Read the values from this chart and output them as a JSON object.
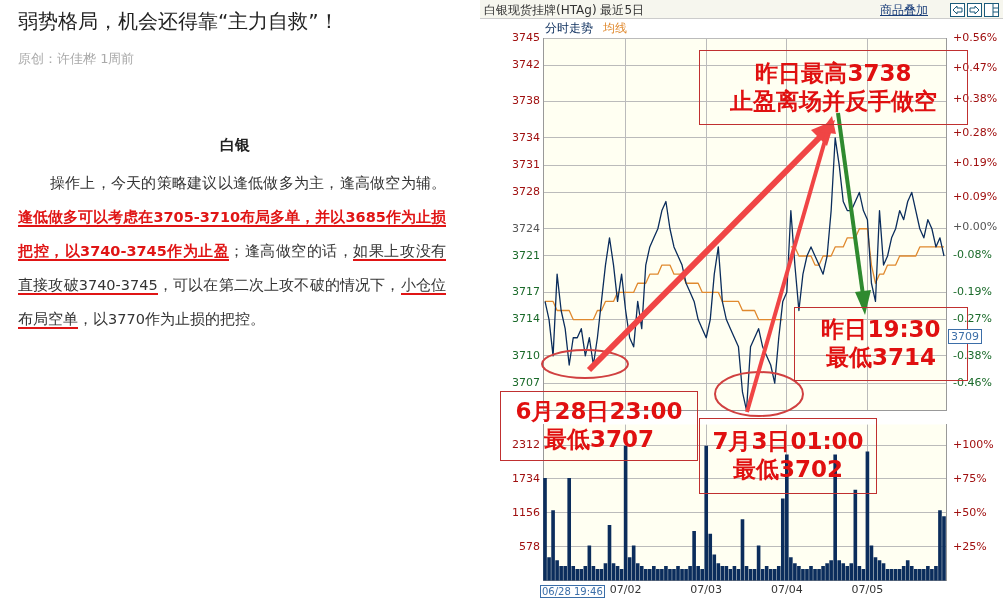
{
  "chart_data": [
    {
      "type": "other",
      "title": "弱势格局，机会还得靠“主力自救”！",
      "subtitle": "原创：许佳桦 1周前",
      "annotations": [
        "白银",
        "操作上，今天的策略建议以逢低做多为主，逢高做空为辅。",
        "逢低做多可以考虑在3705-3710布局多单，并以3685作为止损把控，以3740-3745作为止盈",
        "；逢高做空的话，",
        "如果上攻没有直接攻破3740-3745",
        "，可以在第二次上攻不破的情况下，",
        "小仓位布局空单",
        "，以3770作为止损的把控。"
      ]
    },
    {
      "type": "line",
      "title": "白银现货挂牌(HTAg) 最近5日",
      "legend": "top left",
      "grid": true,
      "tick_labels": "y",
      "categories": [
        null,
        null,
        null,
        null,
        null,
        null,
        null,
        null,
        null,
        null,
        null,
        null,
        null,
        null,
        null,
        null,
        null,
        null,
        null,
        null,
        null,
        null,
        null,
        null,
        null,
        null,
        null,
        null,
        null,
        null,
        null,
        null,
        null,
        null,
        null,
        null,
        null,
        null,
        null,
        null,
        null,
        null,
        null,
        null,
        null,
        null,
        null,
        null,
        null,
        null,
        null,
        null,
        null,
        null,
        null,
        null,
        null,
        null,
        null,
        null,
        null,
        null,
        null,
        null,
        null,
        null,
        null,
        null,
        null,
        null,
        null,
        null,
        null,
        null,
        null,
        null,
        null,
        null,
        null,
        null,
        null,
        null,
        null,
        null,
        null,
        null,
        null,
        null,
        null,
        null,
        null,
        null,
        null,
        null,
        null,
        null,
        null,
        null,
        null,
        null
      ],
      "ylim": [
        3704,
        3745
      ],
      "yticks": [
        3707,
        3710,
        3714,
        3717,
        3721,
        3724,
        3728,
        3731,
        3734,
        3738,
        3742,
        3745
      ],
      "y2lim": [
        -0.54,
        0.56
      ],
      "y2ticks": [
        {
          "value": -0.46,
          "label": "-0.46%"
        },
        {
          "value": -0.38,
          "label": "-0.38%"
        },
        {
          "value": -0.27,
          "label": "-0.27%"
        },
        {
          "value": -0.19,
          "label": "-0.19%"
        },
        {
          "value": -0.08,
          "label": "-0.08%"
        },
        {
          "value": 0,
          "label": "+0.00%"
        },
        {
          "value": 0.09,
          "label": "+0.09%"
        },
        {
          "value": 0.19,
          "label": "+0.19%"
        },
        {
          "value": 0.28,
          "label": "+0.28%"
        },
        {
          "value": 0.38,
          "label": "+0.38%"
        },
        {
          "value": 0.47,
          "label": "+0.47%"
        },
        {
          "value": 0.56,
          "label": "+0.56%"
        }
      ],
      "series": [
        {
          "name": "分时走势",
          "color": "#0b2d5c",
          "values": [
            3716,
            3714,
            3710,
            3719,
            3715,
            3713,
            3709,
            3712,
            3712,
            3713,
            3710,
            3712,
            3709,
            3712,
            3716,
            3720,
            3723,
            3720,
            3716,
            3719,
            3715,
            3712,
            3711,
            3716,
            3713,
            3720,
            3722,
            3723,
            3724,
            3726,
            3727,
            3724,
            3722,
            3721,
            3720,
            3718,
            3717,
            3716,
            3714,
            3713,
            3712,
            3714,
            3719,
            3722,
            3716,
            3714,
            3713,
            3712,
            3711,
            3706,
            3704,
            3711,
            3712,
            3713,
            3711,
            3710,
            3709,
            3707,
            3712,
            3716,
            3717,
            3726,
            3720,
            3715,
            3719,
            3721,
            3722,
            3721,
            3720,
            3719,
            3721,
            3726,
            3734,
            3731,
            3727,
            3726,
            3726,
            3727,
            3728,
            3726,
            3725,
            3718,
            3716,
            3726,
            3720,
            3721,
            3723,
            3724,
            3726,
            3725,
            3727,
            3728,
            3726,
            3724,
            3723,
            3725,
            3724,
            3722,
            3723,
            3721
          ]
        },
        {
          "name": "均线",
          "color": "#e0892e",
          "values": [
            3716,
            3716,
            3716,
            3715,
            3715,
            3715,
            3715,
            3714,
            3714,
            3714,
            3714,
            3714,
            3714,
            3715,
            3715,
            3716,
            3716,
            3716,
            3717,
            3717,
            3717,
            3717,
            3717,
            3718,
            3718,
            3718,
            3719,
            3719,
            3719,
            3720,
            3720,
            3720,
            3719,
            3719,
            3719,
            3718,
            3718,
            3718,
            3718,
            3717,
            3717,
            3717,
            3717,
            3717,
            3716,
            3716,
            3716,
            3716,
            3716,
            3715,
            3715,
            3715,
            3715,
            3714,
            3714,
            3714,
            3714,
            3714,
            3714,
            3714,
            null,
            3722,
            3722,
            3721,
            3721,
            3721,
            3721,
            3720,
            3720,
            3721,
            3721,
            3721,
            3722,
            3722,
            3722,
            3723,
            3723,
            3723,
            3724,
            3724,
            3724,
            3720,
            3718,
            3719,
            3719,
            3720,
            3720,
            3720,
            3721,
            3721,
            3721,
            3721,
            3721,
            3722,
            3722,
            3722,
            3722,
            3722,
            3722,
            3722
          ]
        }
      ],
      "annotations": [
        "昨日最高3738\n止盈离场并反手做空",
        "昨日19:30\n最低3714",
        "6月28日23:00\n最低3707",
        "7月3日01:00\n最低3702",
        "3709",
        "商品叠加"
      ]
    },
    {
      "type": "bar",
      "grid": true,
      "categories": [
        null,
        null,
        null,
        null,
        null,
        null,
        null,
        null,
        null,
        null,
        null,
        null,
        null,
        null,
        null,
        null,
        null,
        null,
        null,
        null,
        "07/02",
        null,
        null,
        null,
        null,
        null,
        null,
        null,
        null,
        null,
        null,
        null,
        null,
        null,
        null,
        null,
        null,
        null,
        null,
        null,
        "07/03",
        null,
        null,
        null,
        null,
        null,
        null,
        null,
        null,
        null,
        null,
        null,
        null,
        null,
        null,
        null,
        null,
        null,
        null,
        null,
        "07/04",
        null,
        null,
        null,
        null,
        null,
        null,
        null,
        null,
        null,
        null,
        null,
        null,
        null,
        null,
        null,
        null,
        null,
        null,
        null,
        "07/05",
        null,
        null,
        null,
        null,
        null,
        null,
        null,
        null,
        null,
        null,
        null,
        null,
        null,
        null,
        null,
        null,
        null,
        null,
        null
      ],
      "ylim": [
        0,
        2660
      ],
      "yticks": [
        578,
        1156,
        1734,
        2312
      ],
      "y2lim": [
        0,
        115
      ],
      "y2ticks": [
        {
          "value": 25,
          "label": "+25%"
        },
        {
          "value": 50,
          "label": "+50%"
        },
        {
          "value": 75,
          "label": "+75%"
        },
        {
          "value": 100,
          "label": "+100%"
        }
      ],
      "color": "#0b2d5c",
      "values": [
        1750,
        400,
        1200,
        350,
        250,
        250,
        1750,
        250,
        200,
        200,
        250,
        600,
        250,
        200,
        200,
        300,
        950,
        300,
        250,
        200,
        2300,
        400,
        600,
        300,
        250,
        200,
        200,
        250,
        200,
        200,
        250,
        200,
        200,
        250,
        200,
        200,
        250,
        850,
        250,
        200,
        2300,
        800,
        450,
        300,
        250,
        250,
        200,
        250,
        200,
        1050,
        250,
        200,
        200,
        600,
        200,
        250,
        200,
        200,
        250,
        1400,
        2150,
        400,
        300,
        250,
        200,
        200,
        250,
        200,
        200,
        250,
        300,
        350,
        2150,
        350,
        300,
        250,
        300,
        1550,
        250,
        200,
        2200,
        600,
        400,
        350,
        300,
        200,
        200,
        200,
        200,
        250,
        350,
        250,
        200,
        200,
        200,
        250,
        200,
        250,
        1200,
        1100
      ],
      "annotations": [
        "06/28 19:46"
      ]
    }
  ]
}
